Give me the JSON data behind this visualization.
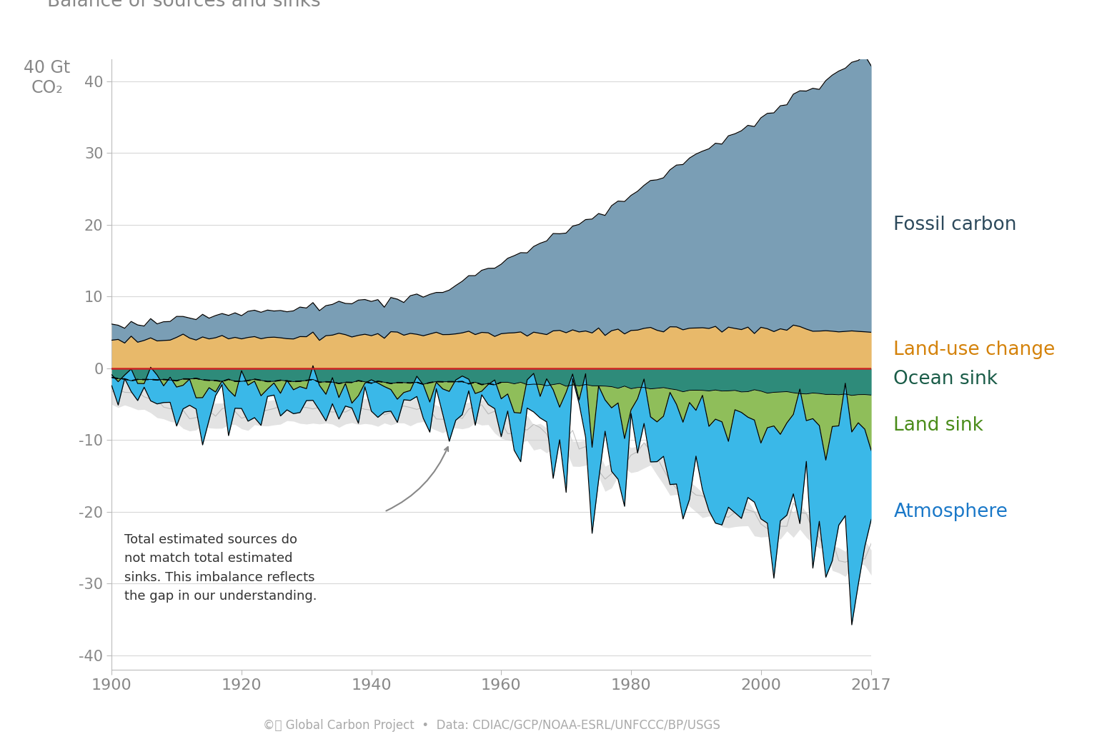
{
  "title": "Balance of sources and sinks",
  "xlabel_ticks": [
    1900,
    1920,
    1940,
    1960,
    1980,
    2000,
    2017
  ],
  "ylim": [
    -42,
    43
  ],
  "xlim": [
    1900,
    2017
  ],
  "yticks": [
    -40,
    -30,
    -20,
    -10,
    0,
    10,
    20,
    30,
    40
  ],
  "footer": "©Ⓐ Global Carbon Project  •  Data: CDIAC/GCP/NOAA-ESRL/UNFCCC/BP/USGS",
  "colors": {
    "fossil": "#7a9eb5",
    "landuse": "#e8b96a",
    "ocean": "#2e8b7a",
    "land": "#8fbe5a",
    "atmosphere": "#3ab8e8",
    "imbalance": "#cccccc",
    "fossil_label": "#2d4a5c",
    "landuse_label": "#d4820a",
    "ocean_label": "#1a5c48",
    "land_label": "#4a8c1a",
    "atmosphere_label": "#1a78c8"
  },
  "annotation": "Total estimated sources do\nnot match total estimated\nsinks. This imbalance reflects\nthe gap in our understanding."
}
